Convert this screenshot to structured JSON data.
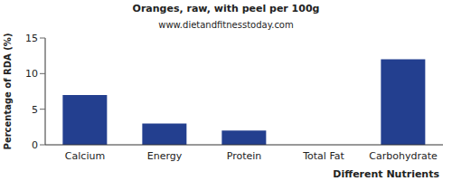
{
  "chart_data": {
    "type": "bar",
    "title": "Oranges, raw, with peel per 100g",
    "subtitle": "www.dietandfitnesstoday.com",
    "x_label": "Different Nutrients",
    "y_label": "Percentage of RDA (%)",
    "categories": [
      "Calcium",
      "Energy",
      "Protein",
      "Total Fat",
      "Carbohydrate"
    ],
    "values": [
      7,
      3,
      2,
      0,
      12
    ],
    "color": "#233f8f",
    "ylim": [
      0,
      15
    ],
    "yticks": [
      0,
      5,
      10,
      15
    ],
    "grid": false
  }
}
